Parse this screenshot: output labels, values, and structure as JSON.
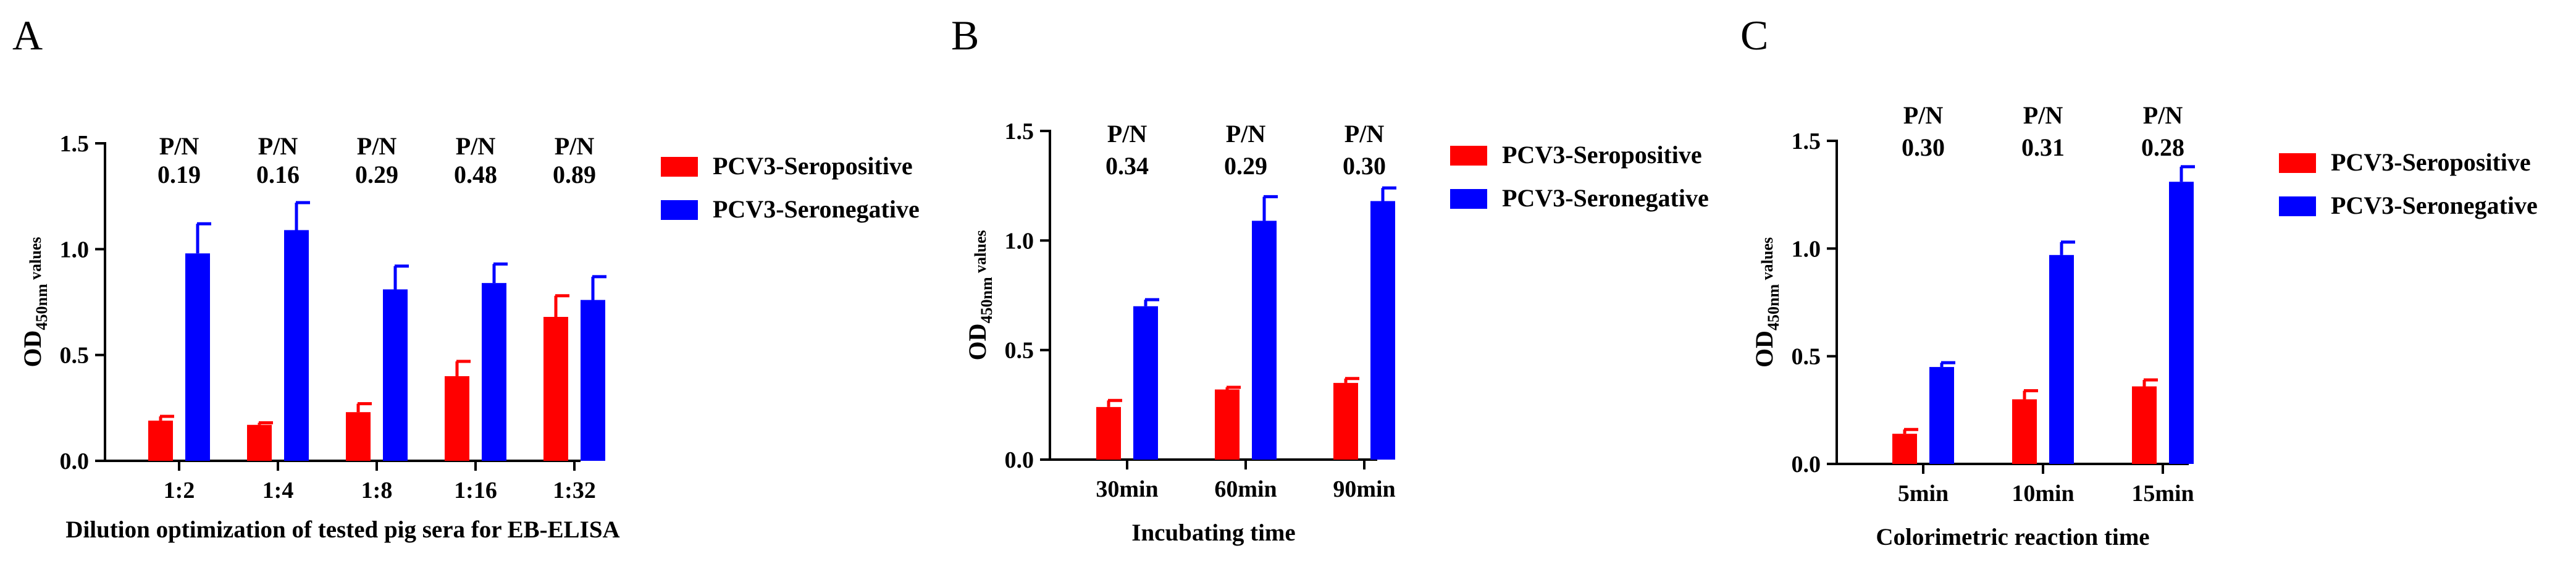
{
  "chart_data": [
    {
      "type": "bar",
      "panel": "A",
      "categories": [
        "1:2",
        "1:4",
        "1:8",
        "1:16",
        "1:32"
      ],
      "series": [
        {
          "name": "PCV3-Seropositive",
          "color": "#ff0000",
          "values": [
            0.19,
            0.17,
            0.23,
            0.4,
            0.68
          ],
          "errors": [
            0.02,
            0.01,
            0.04,
            0.07,
            0.1
          ]
        },
        {
          "name": "PCV3-Seronegative",
          "color": "#0000ff",
          "values": [
            0.98,
            1.09,
            0.81,
            0.84,
            0.76
          ],
          "errors": [
            0.14,
            0.13,
            0.11,
            0.09,
            0.11
          ]
        }
      ],
      "annotation_label": "P/N",
      "annotations": [
        "0.19",
        "0.16",
        "0.29",
        "0.48",
        "0.89"
      ],
      "ylabel_main": "OD",
      "ylabel_sub": "450nm",
      "ylabel_tail": " values",
      "xlabel": "Dilution optimization of tested pig sera for EB-ELISA",
      "ylim": [
        0,
        1.5
      ],
      "yticks": [
        "0.0",
        "0.5",
        "1.0",
        "1.5"
      ]
    },
    {
      "type": "bar",
      "panel": "B",
      "categories": [
        "30min",
        "60min",
        "90min"
      ],
      "series": [
        {
          "name": "PCV3-Seropositive",
          "color": "#ff0000",
          "values": [
            0.24,
            0.32,
            0.35
          ],
          "errors": [
            0.03,
            0.01,
            0.02
          ]
        },
        {
          "name": "PCV3-Seronegative",
          "color": "#0000ff",
          "values": [
            0.7,
            1.09,
            1.18
          ],
          "errors": [
            0.03,
            0.11,
            0.06
          ]
        }
      ],
      "annotation_label": "P/N",
      "annotations": [
        "0.34",
        "0.29",
        "0.30"
      ],
      "ylabel_main": "OD",
      "ylabel_sub": "450nm",
      "ylabel_tail": " values",
      "xlabel": "Incubating time",
      "ylim": [
        0,
        1.5
      ],
      "yticks": [
        "0.0",
        "0.5",
        "1.0",
        "1.5"
      ]
    },
    {
      "type": "bar",
      "panel": "C",
      "categories": [
        "5min",
        "10min",
        "15min"
      ],
      "series": [
        {
          "name": "PCV3-Seropositive",
          "color": "#ff0000",
          "values": [
            0.14,
            0.3,
            0.36
          ],
          "errors": [
            0.02,
            0.04,
            0.03
          ]
        },
        {
          "name": "PCV3-Seronegative",
          "color": "#0000ff",
          "values": [
            0.45,
            0.97,
            1.31
          ],
          "errors": [
            0.02,
            0.06,
            0.07
          ]
        }
      ],
      "annotation_label": "P/N",
      "annotations": [
        "0.30",
        "0.31",
        "0.28"
      ],
      "ylabel_main": "OD",
      "ylabel_sub": "450nm",
      "ylabel_tail": " values",
      "xlabel": "Colorimetric reaction time",
      "ylim": [
        0,
        1.5
      ],
      "yticks": [
        "0.0",
        "0.5",
        "1.0",
        "1.5"
      ]
    }
  ]
}
